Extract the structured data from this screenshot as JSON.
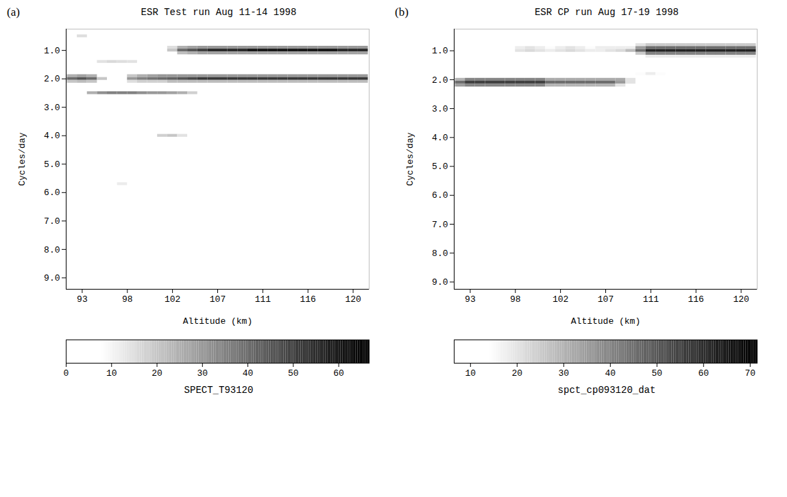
{
  "chart_data": [
    {
      "type": "heatmap",
      "panel_label": "(a)",
      "title": "ESR Test run Aug 11-14 1998",
      "xlabel": "Altitude (km)",
      "ylabel": "Cycles/day",
      "xlim": [
        91.4,
        121.6
      ],
      "xticks": [
        93,
        {
          "value": 97.5,
          "label": "98"
        },
        102,
        {
          "value": 106.5,
          "label": "107"
        },
        111,
        {
          "value": 115.5,
          "label": "116"
        },
        120
      ],
      "ylim": [
        0.25,
        9.4
      ],
      "yticks": [
        {
          "value": 1,
          "label": "1.0"
        },
        {
          "value": 2,
          "label": "2.0"
        },
        {
          "value": 3,
          "label": "3.0"
        },
        {
          "value": 4,
          "label": "4.0"
        },
        {
          "value": 5,
          "label": "5.0"
        },
        {
          "value": 6,
          "label": "6.0"
        },
        {
          "value": 7,
          "label": "7.0"
        },
        {
          "value": 8,
          "label": "8.0"
        },
        {
          "value": 9,
          "label": "9.0"
        }
      ],
      "x": [
        92,
        93,
        94,
        95,
        96,
        97,
        98,
        99,
        100,
        101,
        102,
        103,
        104,
        105,
        106,
        107,
        108,
        109,
        110,
        111,
        112,
        113,
        114,
        115,
        116,
        117,
        118,
        119,
        120,
        121
      ],
      "y": [
        0.5,
        0.9,
        1.0,
        1.1,
        1.4,
        1.9,
        2.0,
        2.1,
        2.5,
        4.0,
        5.7
      ],
      "z": [
        [
          0,
          15,
          0,
          0,
          0,
          0,
          0,
          0,
          0,
          0,
          0,
          0,
          0,
          0,
          0,
          0,
          0,
          0,
          0,
          0,
          0,
          0,
          0,
          0,
          0,
          0,
          0,
          0,
          0,
          0
        ],
        [
          0,
          0,
          0,
          0,
          0,
          0,
          0,
          0,
          0,
          0,
          15,
          25,
          28,
          30,
          30,
          30,
          30,
          30,
          30,
          30,
          30,
          30,
          30,
          30,
          30,
          30,
          30,
          30,
          30,
          30
        ],
        [
          0,
          0,
          0,
          0,
          0,
          0,
          0,
          0,
          0,
          0,
          20,
          40,
          45,
          50,
          55,
          55,
          55,
          55,
          60,
          60,
          60,
          60,
          60,
          60,
          60,
          60,
          60,
          55,
          55,
          55
        ],
        [
          0,
          0,
          0,
          0,
          0,
          0,
          0,
          0,
          0,
          0,
          0,
          22,
          25,
          28,
          28,
          28,
          28,
          28,
          28,
          28,
          28,
          28,
          28,
          28,
          28,
          28,
          28,
          28,
          28,
          28
        ],
        [
          0,
          0,
          0,
          14,
          16,
          15,
          14,
          0,
          0,
          0,
          0,
          0,
          0,
          0,
          0,
          0,
          0,
          0,
          0,
          0,
          0,
          0,
          0,
          0,
          0,
          0,
          0,
          0,
          0,
          0
        ],
        [
          25,
          28,
          25,
          0,
          0,
          0,
          20,
          25,
          28,
          30,
          30,
          30,
          30,
          30,
          30,
          30,
          30,
          30,
          30,
          30,
          30,
          30,
          30,
          30,
          30,
          30,
          30,
          30,
          30,
          30
        ],
        [
          40,
          45,
          40,
          20,
          0,
          0,
          30,
          35,
          38,
          40,
          42,
          45,
          48,
          52,
          52,
          52,
          52,
          52,
          52,
          52,
          52,
          52,
          52,
          52,
          52,
          52,
          52,
          52,
          52,
          52
        ],
        [
          20,
          22,
          20,
          0,
          0,
          0,
          15,
          18,
          18,
          18,
          22,
          22,
          22,
          22,
          22,
          22,
          22,
          22,
          22,
          22,
          22,
          22,
          22,
          22,
          22,
          22,
          22,
          22,
          22,
          22
        ],
        [
          0,
          0,
          25,
          32,
          35,
          35,
          35,
          32,
          30,
          30,
          28,
          25,
          18,
          0,
          0,
          0,
          0,
          0,
          0,
          0,
          0,
          0,
          0,
          0,
          0,
          0,
          0,
          0,
          0,
          0
        ],
        [
          0,
          0,
          0,
          0,
          0,
          0,
          0,
          0,
          0,
          18,
          20,
          14,
          0,
          0,
          0,
          0,
          0,
          0,
          0,
          0,
          0,
          0,
          0,
          0,
          0,
          0,
          0,
          0,
          0,
          0
        ],
        [
          0,
          0,
          0,
          0,
          0,
          12,
          0,
          0,
          0,
          0,
          0,
          0,
          0,
          0,
          0,
          0,
          0,
          0,
          0,
          0,
          0,
          0,
          0,
          0,
          0,
          0,
          0,
          0,
          0,
          0
        ]
      ],
      "colorbar": {
        "label": "SPECT_T93120",
        "range": [
          0,
          66.7
        ],
        "ticks": [
          0,
          10,
          20,
          30,
          40,
          50,
          60
        ]
      }
    },
    {
      "type": "heatmap",
      "panel_label": "(b)",
      "title": "ESR CP run Aug 17-19 1998",
      "xlabel": "Altitude (km)",
      "ylabel": "Cycles/day",
      "xlim": [
        91.4,
        121.6
      ],
      "xticks": [
        93,
        {
          "value": 97.5,
          "label": "98"
        },
        102,
        {
          "value": 106.5,
          "label": "107"
        },
        111,
        {
          "value": 115.5,
          "label": "116"
        },
        120
      ],
      "ylim": [
        0.25,
        9.25
      ],
      "yticks": [
        {
          "value": 1,
          "label": "1.0"
        },
        {
          "value": 2,
          "label": "2.0"
        },
        {
          "value": 3,
          "label": "3.0"
        },
        {
          "value": 4,
          "label": "4.0"
        },
        {
          "value": 5,
          "label": "5.0"
        },
        {
          "value": 6,
          "label": "6.0"
        },
        {
          "value": 7,
          "label": "7.0"
        },
        {
          "value": 8,
          "label": "8.0"
        },
        {
          "value": 9,
          "label": "9.0"
        }
      ],
      "x": [
        92,
        93,
        94,
        95,
        96,
        97,
        98,
        99,
        100,
        101,
        102,
        103,
        104,
        105,
        106,
        107,
        108,
        109,
        110,
        111,
        112,
        113,
        114,
        115,
        116,
        117,
        118,
        119,
        120,
        121
      ],
      "y": [
        0.3,
        0.8,
        0.9,
        1.0,
        1.1,
        1.2,
        1.8,
        2.0,
        2.1,
        2.2,
        4.2
      ],
      "z": [
        [
          0,
          0,
          0,
          0,
          0,
          0,
          0,
          0,
          0,
          0,
          12,
          0,
          0,
          0,
          0,
          0,
          0,
          0,
          0,
          0,
          0,
          0,
          0,
          0,
          0,
          0,
          0,
          12,
          0,
          0
        ],
        [
          0,
          0,
          0,
          0,
          0,
          0,
          0,
          0,
          0,
          0,
          0,
          0,
          0,
          0,
          0,
          0,
          0,
          0,
          20,
          25,
          25,
          25,
          25,
          25,
          25,
          25,
          25,
          25,
          25,
          25
        ],
        [
          0,
          0,
          0,
          0,
          0,
          0,
          18,
          20,
          18,
          15,
          18,
          20,
          18,
          15,
          18,
          18,
          18,
          18,
          35,
          45,
          45,
          45,
          45,
          45,
          45,
          45,
          45,
          45,
          45,
          45
        ],
        [
          0,
          0,
          0,
          0,
          0,
          0,
          20,
          22,
          20,
          18,
          20,
          22,
          20,
          18,
          18,
          20,
          22,
          28,
          45,
          62,
          62,
          62,
          62,
          62,
          62,
          62,
          62,
          62,
          62,
          62
        ],
        [
          0,
          0,
          0,
          0,
          0,
          0,
          0,
          0,
          0,
          0,
          0,
          0,
          0,
          0,
          0,
          0,
          0,
          0,
          25,
          40,
          40,
          40,
          40,
          40,
          40,
          40,
          40,
          40,
          40,
          40
        ],
        [
          0,
          0,
          0,
          0,
          0,
          0,
          0,
          0,
          0,
          0,
          0,
          0,
          0,
          0,
          0,
          0,
          0,
          0,
          0,
          18,
          18,
          18,
          18,
          18,
          18,
          18,
          18,
          18,
          18,
          18
        ],
        [
          0,
          0,
          0,
          0,
          0,
          0,
          0,
          0,
          0,
          0,
          0,
          0,
          0,
          0,
          0,
          0,
          0,
          0,
          15,
          18,
          15,
          0,
          0,
          0,
          0,
          0,
          0,
          0,
          0,
          0
        ],
        [
          30,
          40,
          40,
          40,
          40,
          40,
          40,
          40,
          40,
          32,
          32,
          32,
          32,
          32,
          32,
          32,
          32,
          20,
          0,
          0,
          0,
          0,
          0,
          0,
          0,
          0,
          0,
          0,
          0,
          0
        ],
        [
          45,
          55,
          55,
          55,
          55,
          55,
          55,
          55,
          55,
          45,
          45,
          45,
          45,
          45,
          45,
          45,
          35,
          20,
          0,
          0,
          0,
          0,
          0,
          0,
          0,
          0,
          0,
          0,
          0,
          0
        ],
        [
          35,
          40,
          40,
          40,
          40,
          40,
          40,
          40,
          40,
          30,
          30,
          30,
          30,
          30,
          30,
          30,
          20,
          0,
          0,
          0,
          0,
          0,
          0,
          0,
          0,
          0,
          0,
          0,
          0,
          0
        ],
        [
          0,
          0,
          0,
          0,
          0,
          0,
          0,
          0,
          0,
          12,
          0,
          0,
          0,
          0,
          0,
          0,
          0,
          0,
          0,
          0,
          0,
          0,
          0,
          0,
          0,
          0,
          0,
          0,
          0,
          0
        ]
      ],
      "colorbar": {
        "label": "spct_cp093120_dat",
        "range": [
          6.5,
          71.5
        ],
        "ticks": [
          10,
          20,
          30,
          40,
          50,
          60,
          70
        ]
      }
    }
  ]
}
